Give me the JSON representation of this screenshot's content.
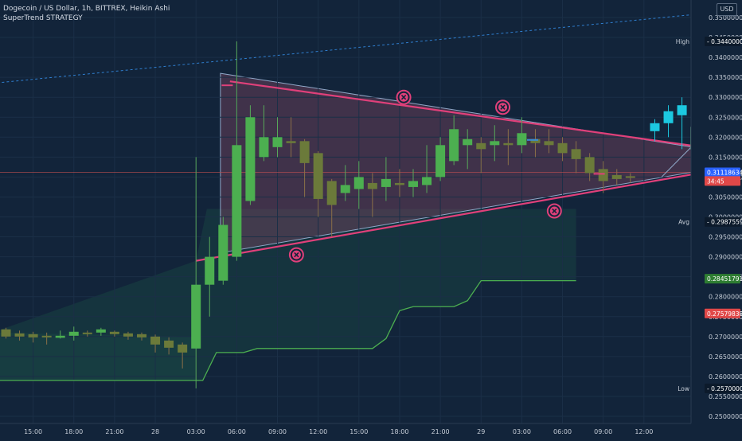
{
  "header": {
    "symbol_line": "Dogecoin / US Dollar, 1h, BITTREX, Heikin Ashi",
    "strategy": "SuperTrend STRATEGY",
    "currency": "USD"
  },
  "colors": {
    "background": "#12243a",
    "bull": "#4caf50",
    "bear": "#6b7a3a",
    "projection_bull": "#1cc8e0",
    "triangle_line": "#e0407a",
    "supertrend": "#4caf50",
    "dotted_line": "#2f7fd0"
  },
  "chart_data": {
    "type": "candlestick",
    "y_axis": {
      "min": 0.25,
      "max": 0.35,
      "ticks": [
        "0.35000000",
        "0.34500000",
        "0.34000000",
        "0.33500000",
        "0.33000000",
        "0.32500000",
        "0.32000000",
        "0.31500000",
        "0.31000000",
        "0.30500000",
        "0.30000000",
        "0.29500000",
        "0.29000000",
        "0.28500000",
        "0.28000000",
        "0.27500000",
        "0.27000000",
        "0.26500000",
        "0.26000000",
        "0.25500000",
        "0.25000000"
      ]
    },
    "x_axis": {
      "ticks": [
        {
          "i": -1,
          "label": "12:00"
        },
        {
          "i": 2,
          "label": "15:00"
        },
        {
          "i": 5,
          "label": "18:00"
        },
        {
          "i": 8,
          "label": "21:00"
        },
        {
          "i": 11,
          "label": "28"
        },
        {
          "i": 14,
          "label": "03:00"
        },
        {
          "i": 17,
          "label": "06:00"
        },
        {
          "i": 20,
          "label": "09:00"
        },
        {
          "i": 23,
          "label": "12:00"
        },
        {
          "i": 26,
          "label": "15:00"
        },
        {
          "i": 29,
          "label": "18:00"
        },
        {
          "i": 32,
          "label": "21:00"
        },
        {
          "i": 35,
          "label": "29"
        },
        {
          "i": 38,
          "label": "03:00"
        },
        {
          "i": 41,
          "label": "06:00"
        },
        {
          "i": 44,
          "label": "09:00"
        },
        {
          "i": 47,
          "label": "12:00"
        }
      ]
    },
    "candles": [
      {
        "o": 0.2718,
        "c": 0.27,
        "h": 0.2722,
        "l": 0.2695
      },
      {
        "o": 0.2708,
        "c": 0.27,
        "h": 0.2715,
        "l": 0.269
      },
      {
        "o": 0.2706,
        "c": 0.2698,
        "h": 0.2712,
        "l": 0.2685
      },
      {
        "o": 0.2702,
        "c": 0.2698,
        "h": 0.271,
        "l": 0.268
      },
      {
        "o": 0.2697,
        "c": 0.2702,
        "h": 0.2715,
        "l": 0.2695
      },
      {
        "o": 0.2702,
        "c": 0.2712,
        "h": 0.2725,
        "l": 0.269
      },
      {
        "o": 0.271,
        "c": 0.2706,
        "h": 0.2715,
        "l": 0.27
      },
      {
        "o": 0.271,
        "c": 0.2718,
        "h": 0.2722,
        "l": 0.2702
      },
      {
        "o": 0.2712,
        "c": 0.2706,
        "h": 0.2715,
        "l": 0.27
      },
      {
        "o": 0.2708,
        "c": 0.27,
        "h": 0.2712,
        "l": 0.2692
      },
      {
        "o": 0.2706,
        "c": 0.2698,
        "h": 0.271,
        "l": 0.269
      },
      {
        "o": 0.27,
        "c": 0.268,
        "h": 0.2705,
        "l": 0.266
      },
      {
        "o": 0.269,
        "c": 0.2672,
        "h": 0.2698,
        "l": 0.2655
      },
      {
        "o": 0.268,
        "c": 0.266,
        "h": 0.2685,
        "l": 0.262
      },
      {
        "o": 0.267,
        "c": 0.283,
        "h": 0.315,
        "l": 0.257
      },
      {
        "o": 0.283,
        "c": 0.29,
        "h": 0.295,
        "l": 0.275
      },
      {
        "o": 0.284,
        "c": 0.298,
        "h": 0.3,
        "l": 0.283
      },
      {
        "o": 0.29,
        "c": 0.318,
        "h": 0.344,
        "l": 0.289
      },
      {
        "o": 0.304,
        "c": 0.325,
        "h": 0.328,
        "l": 0.303
      },
      {
        "o": 0.315,
        "c": 0.32,
        "h": 0.328,
        "l": 0.314
      },
      {
        "o": 0.3175,
        "c": 0.32,
        "h": 0.325,
        "l": 0.315
      },
      {
        "o": 0.319,
        "c": 0.3185,
        "h": 0.325,
        "l": 0.315
      },
      {
        "o": 0.319,
        "c": 0.3135,
        "h": 0.3195,
        "l": 0.305
      },
      {
        "o": 0.316,
        "c": 0.3045,
        "h": 0.3165,
        "l": 0.3
      },
      {
        "o": 0.309,
        "c": 0.303,
        "h": 0.3095,
        "l": 0.295
      },
      {
        "o": 0.306,
        "c": 0.308,
        "h": 0.313,
        "l": 0.304
      },
      {
        "o": 0.307,
        "c": 0.31,
        "h": 0.314,
        "l": 0.302
      },
      {
        "o": 0.3085,
        "c": 0.307,
        "h": 0.311,
        "l": 0.3
      },
      {
        "o": 0.3075,
        "c": 0.3095,
        "h": 0.315,
        "l": 0.304
      },
      {
        "o": 0.3085,
        "c": 0.308,
        "h": 0.312,
        "l": 0.305
      },
      {
        "o": 0.3075,
        "c": 0.309,
        "h": 0.312,
        "l": 0.305
      },
      {
        "o": 0.308,
        "c": 0.31,
        "h": 0.318,
        "l": 0.306
      },
      {
        "o": 0.31,
        "c": 0.318,
        "h": 0.32,
        "l": 0.309
      },
      {
        "o": 0.314,
        "c": 0.322,
        "h": 0.3255,
        "l": 0.313
      },
      {
        "o": 0.318,
        "c": 0.3195,
        "h": 0.322,
        "l": 0.312
      },
      {
        "o": 0.3185,
        "c": 0.317,
        "h": 0.32,
        "l": 0.311
      },
      {
        "o": 0.318,
        "c": 0.319,
        "h": 0.323,
        "l": 0.314
      },
      {
        "o": 0.3185,
        "c": 0.318,
        "h": 0.322,
        "l": 0.313
      },
      {
        "o": 0.318,
        "c": 0.321,
        "h": 0.325,
        "l": 0.316
      },
      {
        "o": 0.3195,
        "c": 0.3185,
        "h": 0.322,
        "l": 0.315
      },
      {
        "o": 0.319,
        "c": 0.318,
        "h": 0.322,
        "l": 0.316
      },
      {
        "o": 0.3185,
        "c": 0.316,
        "h": 0.32,
        "l": 0.314
      },
      {
        "o": 0.317,
        "c": 0.3145,
        "h": 0.319,
        "l": 0.311
      },
      {
        "o": 0.315,
        "c": 0.311,
        "h": 0.316,
        "l": 0.309
      },
      {
        "o": 0.312,
        "c": 0.309,
        "h": 0.314,
        "l": 0.306
      },
      {
        "o": 0.3105,
        "c": 0.3095,
        "h": 0.312,
        "l": 0.308
      },
      {
        "o": 0.3102,
        "c": 0.3098,
        "h": 0.311,
        "l": 0.3085
      }
    ],
    "projection": [
      {
        "i": 47.8,
        "o": 0.3215,
        "c": 0.3235,
        "h": 0.3245,
        "l": 0.319,
        "style": "solid"
      },
      {
        "i": 48.8,
        "o": 0.3235,
        "c": 0.3265,
        "h": 0.328,
        "l": 0.32,
        "style": "solid"
      },
      {
        "i": 49.8,
        "o": 0.3255,
        "c": 0.328,
        "h": 0.33,
        "l": 0.317,
        "style": "solid"
      },
      {
        "i": 50.8,
        "o": 0.317,
        "c": 0.3225,
        "h": 0.326,
        "l": 0.316,
        "style": "ghost"
      },
      {
        "i": 51.8,
        "o": 0.325,
        "c": 0.335,
        "h": 0.337,
        "l": 0.323,
        "style": "solid"
      },
      {
        "i": 52.8,
        "o": 0.328,
        "c": 0.329,
        "h": 0.335,
        "l": 0.318,
        "style": "ghost"
      },
      {
        "i": 53.8,
        "o": 0.3345,
        "c": 0.3362,
        "h": 0.348,
        "l": 0.323,
        "style": "ghost"
      }
    ],
    "supertrend": [
      {
        "i": -1,
        "v": 0.259
      },
      {
        "i": 14.5,
        "v": 0.259
      },
      {
        "i": 15.5,
        "v": 0.266
      },
      {
        "i": 17.5,
        "v": 0.266
      },
      {
        "i": 18.5,
        "v": 0.267
      },
      {
        "i": 27,
        "v": 0.267
      },
      {
        "i": 28,
        "v": 0.2695
      },
      {
        "i": 29,
        "v": 0.2765
      },
      {
        "i": 30,
        "v": 0.2775
      },
      {
        "i": 33,
        "v": 0.2775
      },
      {
        "i": 34,
        "v": 0.279
      },
      {
        "i": 35,
        "v": 0.284
      },
      {
        "i": 42,
        "v": 0.284
      }
    ],
    "triangle": {
      "apex": {
        "i": 56.2,
        "v": 0.3145
      },
      "top": {
        "i": 15.8,
        "v": 0.336
      },
      "bottom": {
        "i": 15.8,
        "v": 0.291
      }
    },
    "triangle_upper": {
      "i1": 16.5,
      "v1": 0.334,
      "i2": 54.5,
      "v2": 0.316
    },
    "triangle_lower": {
      "i1": 14.0,
      "v1": 0.289,
      "i2": 54.5,
      "v2": 0.313
    },
    "trend_up": {
      "i1": 48.3,
      "v1": 0.31,
      "i2": 56.0,
      "v2": 0.3365
    },
    "dotted": {
      "i1": -1,
      "v1": 0.3335,
      "i2": 58.0,
      "v2": 0.3532
    },
    "current_line": 0.31118634,
    "marks": [
      {
        "i": 29.3,
        "v": 0.33
      },
      {
        "i": 36.6,
        "v": 0.3275
      },
      {
        "i": 40.4,
        "v": 0.3015
      },
      {
        "i": 21.4,
        "v": 0.2905
      }
    ],
    "short_ticks": [
      {
        "i": 16.3,
        "v": 0.333,
        "color": "#e0407a"
      },
      {
        "i": 38.8,
        "v": 0.3193,
        "color": "#3a8fd8"
      },
      {
        "i": 43.7,
        "v": 0.3108,
        "color": "#e0407a"
      }
    ],
    "price_labels": [
      {
        "tag": "High",
        "value": "0.34400000",
        "price": 0.344,
        "color": "#0c1a2b",
        "fg": "#ffffff"
      },
      {
        "tag": "",
        "value": "0.31118634",
        "price": 0.31118634,
        "color": "#2962ff",
        "fg": "#ffffff"
      },
      {
        "tag": "",
        "value": "34:45",
        "price": 0.309,
        "color": "#e04848",
        "fg": "#ffffff"
      },
      {
        "tag": "Avg",
        "value": "0.29875595",
        "price": 0.29875595,
        "color": "#0c1a2b",
        "fg": "#ffffff"
      },
      {
        "tag": "",
        "value": "0.28451791",
        "price": 0.28451791,
        "color": "#2e7d32",
        "fg": "#ffffff"
      },
      {
        "tag": "",
        "value": "0.27579838",
        "price": 0.27579838,
        "color": "#e04848",
        "fg": "#ffffff"
      },
      {
        "tag": "Low",
        "value": "0.25700000",
        "price": 0.257,
        "color": "#0c1a2b",
        "fg": "#ffffff"
      }
    ]
  }
}
